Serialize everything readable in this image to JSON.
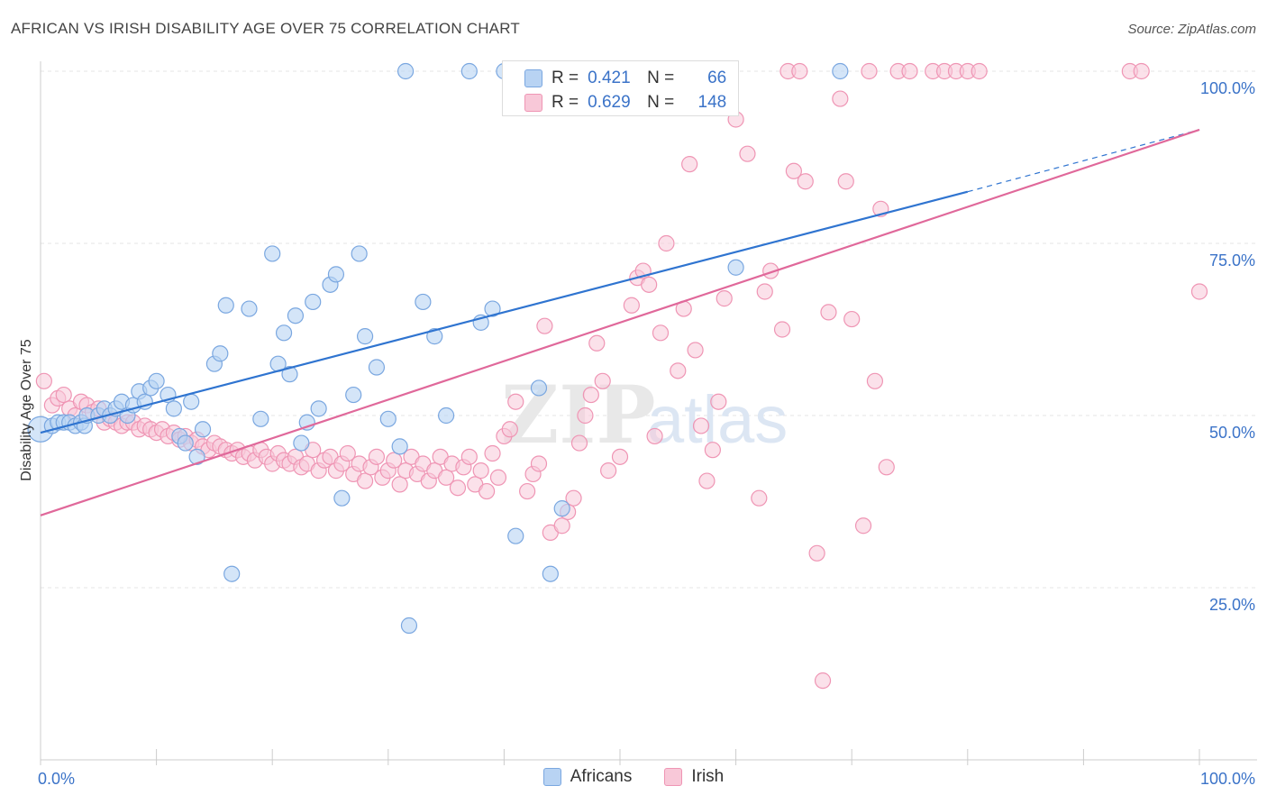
{
  "title": "AFRICAN VS IRISH DISABILITY AGE OVER 75 CORRELATION CHART",
  "source": "Source: ZipAtlas.com",
  "watermark": {
    "zip": "ZIP",
    "atlas": "atlas"
  },
  "legend_stats": [
    {
      "r_label": "R =",
      "r_value": "0.421",
      "n_label": "N =",
      "n_value": "66"
    },
    {
      "r_label": "R =",
      "r_value": "0.629",
      "n_label": "N =",
      "n_value": "148"
    }
  ],
  "colors": {
    "africans_fill": "#b8d3f3",
    "africans_stroke": "#7aa7e0",
    "africans_line": "#2f74d0",
    "irish_fill": "#f8c8d8",
    "irish_stroke": "#ef95b4",
    "irish_line": "#e0689a",
    "tick_label": "#3b73c8"
  },
  "chart_data": {
    "type": "scatter",
    "title": "AFRICAN VS IRISH DISABILITY AGE OVER 75 CORRELATION CHART",
    "xlabel": "",
    "ylabel": "Disability Age Over 75",
    "xlim": [
      0,
      100
    ],
    "ylim": [
      0,
      100
    ],
    "x_tick_labels": [
      "0.0%",
      "100.0%"
    ],
    "y_tick_labels": [
      "25.0%",
      "50.0%",
      "75.0%",
      "100.0%"
    ],
    "y_ticks": [
      25,
      50,
      75,
      100
    ],
    "grid": true,
    "legend_position": "bottom",
    "series": [
      {
        "name": "Africans",
        "r": 0.421,
        "n": 66,
        "trend": {
          "x0": 0,
          "y0": 47.5,
          "x1": 80,
          "y1": 82.5,
          "dashed_to_x": 100,
          "dashed_to_y": 91.5
        },
        "points": [
          [
            0,
            48
          ],
          [
            1,
            48.5
          ],
          [
            1.5,
            49
          ],
          [
            2,
            49
          ],
          [
            2.5,
            49
          ],
          [
            3,
            48.5
          ],
          [
            3.5,
            49
          ],
          [
            3.8,
            48.5
          ],
          [
            4,
            50
          ],
          [
            5,
            50
          ],
          [
            5.5,
            51
          ],
          [
            6,
            50
          ],
          [
            6.5,
            51
          ],
          [
            7,
            52
          ],
          [
            7.5,
            50
          ],
          [
            8,
            51.5
          ],
          [
            8.5,
            53.5
          ],
          [
            9,
            52
          ],
          [
            9.5,
            54
          ],
          [
            10,
            55
          ],
          [
            11,
            53
          ],
          [
            11.5,
            51
          ],
          [
            12,
            47
          ],
          [
            12.5,
            46
          ],
          [
            13,
            52
          ],
          [
            13.5,
            44
          ],
          [
            14,
            48
          ],
          [
            15,
            57.5
          ],
          [
            15.5,
            59
          ],
          [
            16,
            66
          ],
          [
            16.5,
            27
          ],
          [
            18,
            65.5
          ],
          [
            19,
            49.5
          ],
          [
            20,
            73.5
          ],
          [
            20.5,
            57.5
          ],
          [
            21,
            62
          ],
          [
            21.5,
            56
          ],
          [
            22,
            64.5
          ],
          [
            22.5,
            46
          ],
          [
            23,
            49
          ],
          [
            23.5,
            66.5
          ],
          [
            24,
            51
          ],
          [
            25,
            69
          ],
          [
            25.5,
            70.5
          ],
          [
            26,
            38
          ],
          [
            27,
            53
          ],
          [
            27.5,
            73.5
          ],
          [
            28,
            61.5
          ],
          [
            29,
            57
          ],
          [
            30,
            49.5
          ],
          [
            31,
            45.5
          ],
          [
            31.5,
            100
          ],
          [
            31.8,
            19.5
          ],
          [
            33,
            66.5
          ],
          [
            34,
            61.5
          ],
          [
            35,
            50
          ],
          [
            37,
            100
          ],
          [
            38,
            63.5
          ],
          [
            39,
            65.5
          ],
          [
            40,
            100
          ],
          [
            41,
            32.5
          ],
          [
            43,
            54
          ],
          [
            44,
            27
          ],
          [
            45,
            36.5
          ],
          [
            49,
            100
          ],
          [
            55,
            100
          ],
          [
            60,
            71.5
          ],
          [
            69,
            100
          ]
        ]
      },
      {
        "name": "Irish",
        "r": 0.629,
        "n": 148,
        "trend": {
          "x0": 0,
          "y0": 35.5,
          "x1": 100,
          "y1": 91.5
        },
        "points": [
          [
            0.3,
            55
          ],
          [
            1,
            51.5
          ],
          [
            1.5,
            52.5
          ],
          [
            2,
            53
          ],
          [
            2.5,
            51
          ],
          [
            3,
            50
          ],
          [
            3.5,
            52
          ],
          [
            4,
            51.5
          ],
          [
            4.5,
            50.5
          ],
          [
            5,
            51
          ],
          [
            5.5,
            49
          ],
          [
            6,
            49.5
          ],
          [
            6.5,
            49
          ],
          [
            7,
            48.5
          ],
          [
            7.5,
            49
          ],
          [
            8,
            49
          ],
          [
            8.5,
            48
          ],
          [
            9,
            48.5
          ],
          [
            9.5,
            48
          ],
          [
            10,
            47.5
          ],
          [
            10.5,
            48
          ],
          [
            11,
            47
          ],
          [
            11.5,
            47.5
          ],
          [
            12,
            46.5
          ],
          [
            12.5,
            47
          ],
          [
            13,
            46
          ],
          [
            13.5,
            46.5
          ],
          [
            14,
            45.5
          ],
          [
            14.5,
            45
          ],
          [
            15,
            46
          ],
          [
            15.5,
            45.5
          ],
          [
            16,
            45
          ],
          [
            16.5,
            44.5
          ],
          [
            17,
            45
          ],
          [
            17.5,
            44
          ],
          [
            18,
            44.5
          ],
          [
            18.5,
            43.5
          ],
          [
            19,
            45
          ],
          [
            19.5,
            44
          ],
          [
            20,
            43
          ],
          [
            20.5,
            44.5
          ],
          [
            21,
            43.5
          ],
          [
            21.5,
            43
          ],
          [
            22,
            44
          ],
          [
            22.5,
            42.5
          ],
          [
            23,
            43
          ],
          [
            23.5,
            45
          ],
          [
            24,
            42
          ],
          [
            24.5,
            43.5
          ],
          [
            25,
            44
          ],
          [
            25.5,
            42
          ],
          [
            26,
            43
          ],
          [
            26.5,
            44.5
          ],
          [
            27,
            41.5
          ],
          [
            27.5,
            43
          ],
          [
            28,
            40.5
          ],
          [
            28.5,
            42.5
          ],
          [
            29,
            44
          ],
          [
            29.5,
            41
          ],
          [
            30,
            42
          ],
          [
            30.5,
            43.5
          ],
          [
            31,
            40
          ],
          [
            31.5,
            42
          ],
          [
            32,
            44
          ],
          [
            32.5,
            41.5
          ],
          [
            33,
            43
          ],
          [
            33.5,
            40.5
          ],
          [
            34,
            42
          ],
          [
            34.5,
            44
          ],
          [
            35,
            41
          ],
          [
            35.5,
            43
          ],
          [
            36,
            39.5
          ],
          [
            36.5,
            42.5
          ],
          [
            37,
            44
          ],
          [
            37.5,
            40
          ],
          [
            38,
            42
          ],
          [
            38.5,
            39
          ],
          [
            39,
            44.5
          ],
          [
            39.5,
            41
          ],
          [
            40,
            47
          ],
          [
            40.5,
            48
          ],
          [
            41,
            52
          ],
          [
            42,
            39
          ],
          [
            42.5,
            41.5
          ],
          [
            43,
            43
          ],
          [
            43.5,
            63
          ],
          [
            44,
            33
          ],
          [
            45,
            34
          ],
          [
            45.5,
            36
          ],
          [
            46,
            38
          ],
          [
            46.5,
            46
          ],
          [
            47,
            50
          ],
          [
            47.5,
            53
          ],
          [
            48,
            60.5
          ],
          [
            48.5,
            55
          ],
          [
            49,
            42
          ],
          [
            50,
            44
          ],
          [
            51,
            66
          ],
          [
            51.5,
            70
          ],
          [
            52,
            71
          ],
          [
            52.5,
            69
          ],
          [
            53,
            47
          ],
          [
            53.5,
            62
          ],
          [
            54,
            75
          ],
          [
            55,
            56.5
          ],
          [
            55.5,
            65.5
          ],
          [
            56,
            86.5
          ],
          [
            56.5,
            59.5
          ],
          [
            57,
            48.5
          ],
          [
            57.5,
            40.5
          ],
          [
            58,
            45
          ],
          [
            58.5,
            52
          ],
          [
            59,
            67
          ],
          [
            60,
            93
          ],
          [
            61,
            88
          ],
          [
            62,
            38
          ],
          [
            62.5,
            68
          ],
          [
            63,
            71
          ],
          [
            64,
            62.5
          ],
          [
            64.5,
            100
          ],
          [
            65,
            85.5
          ],
          [
            65.5,
            100
          ],
          [
            66,
            84
          ],
          [
            67,
            30
          ],
          [
            67.5,
            11.5
          ],
          [
            68,
            65
          ],
          [
            69,
            96
          ],
          [
            69.5,
            84
          ],
          [
            70,
            64
          ],
          [
            71,
            34
          ],
          [
            71.5,
            100
          ],
          [
            72,
            55
          ],
          [
            72.5,
            80
          ],
          [
            73,
            42.5
          ],
          [
            74,
            100
          ],
          [
            75,
            100
          ],
          [
            77,
            100
          ],
          [
            78,
            100
          ],
          [
            79,
            100
          ],
          [
            80,
            100
          ],
          [
            81,
            100
          ],
          [
            94,
            100
          ],
          [
            95,
            100
          ],
          [
            100,
            68
          ]
        ]
      }
    ]
  }
}
